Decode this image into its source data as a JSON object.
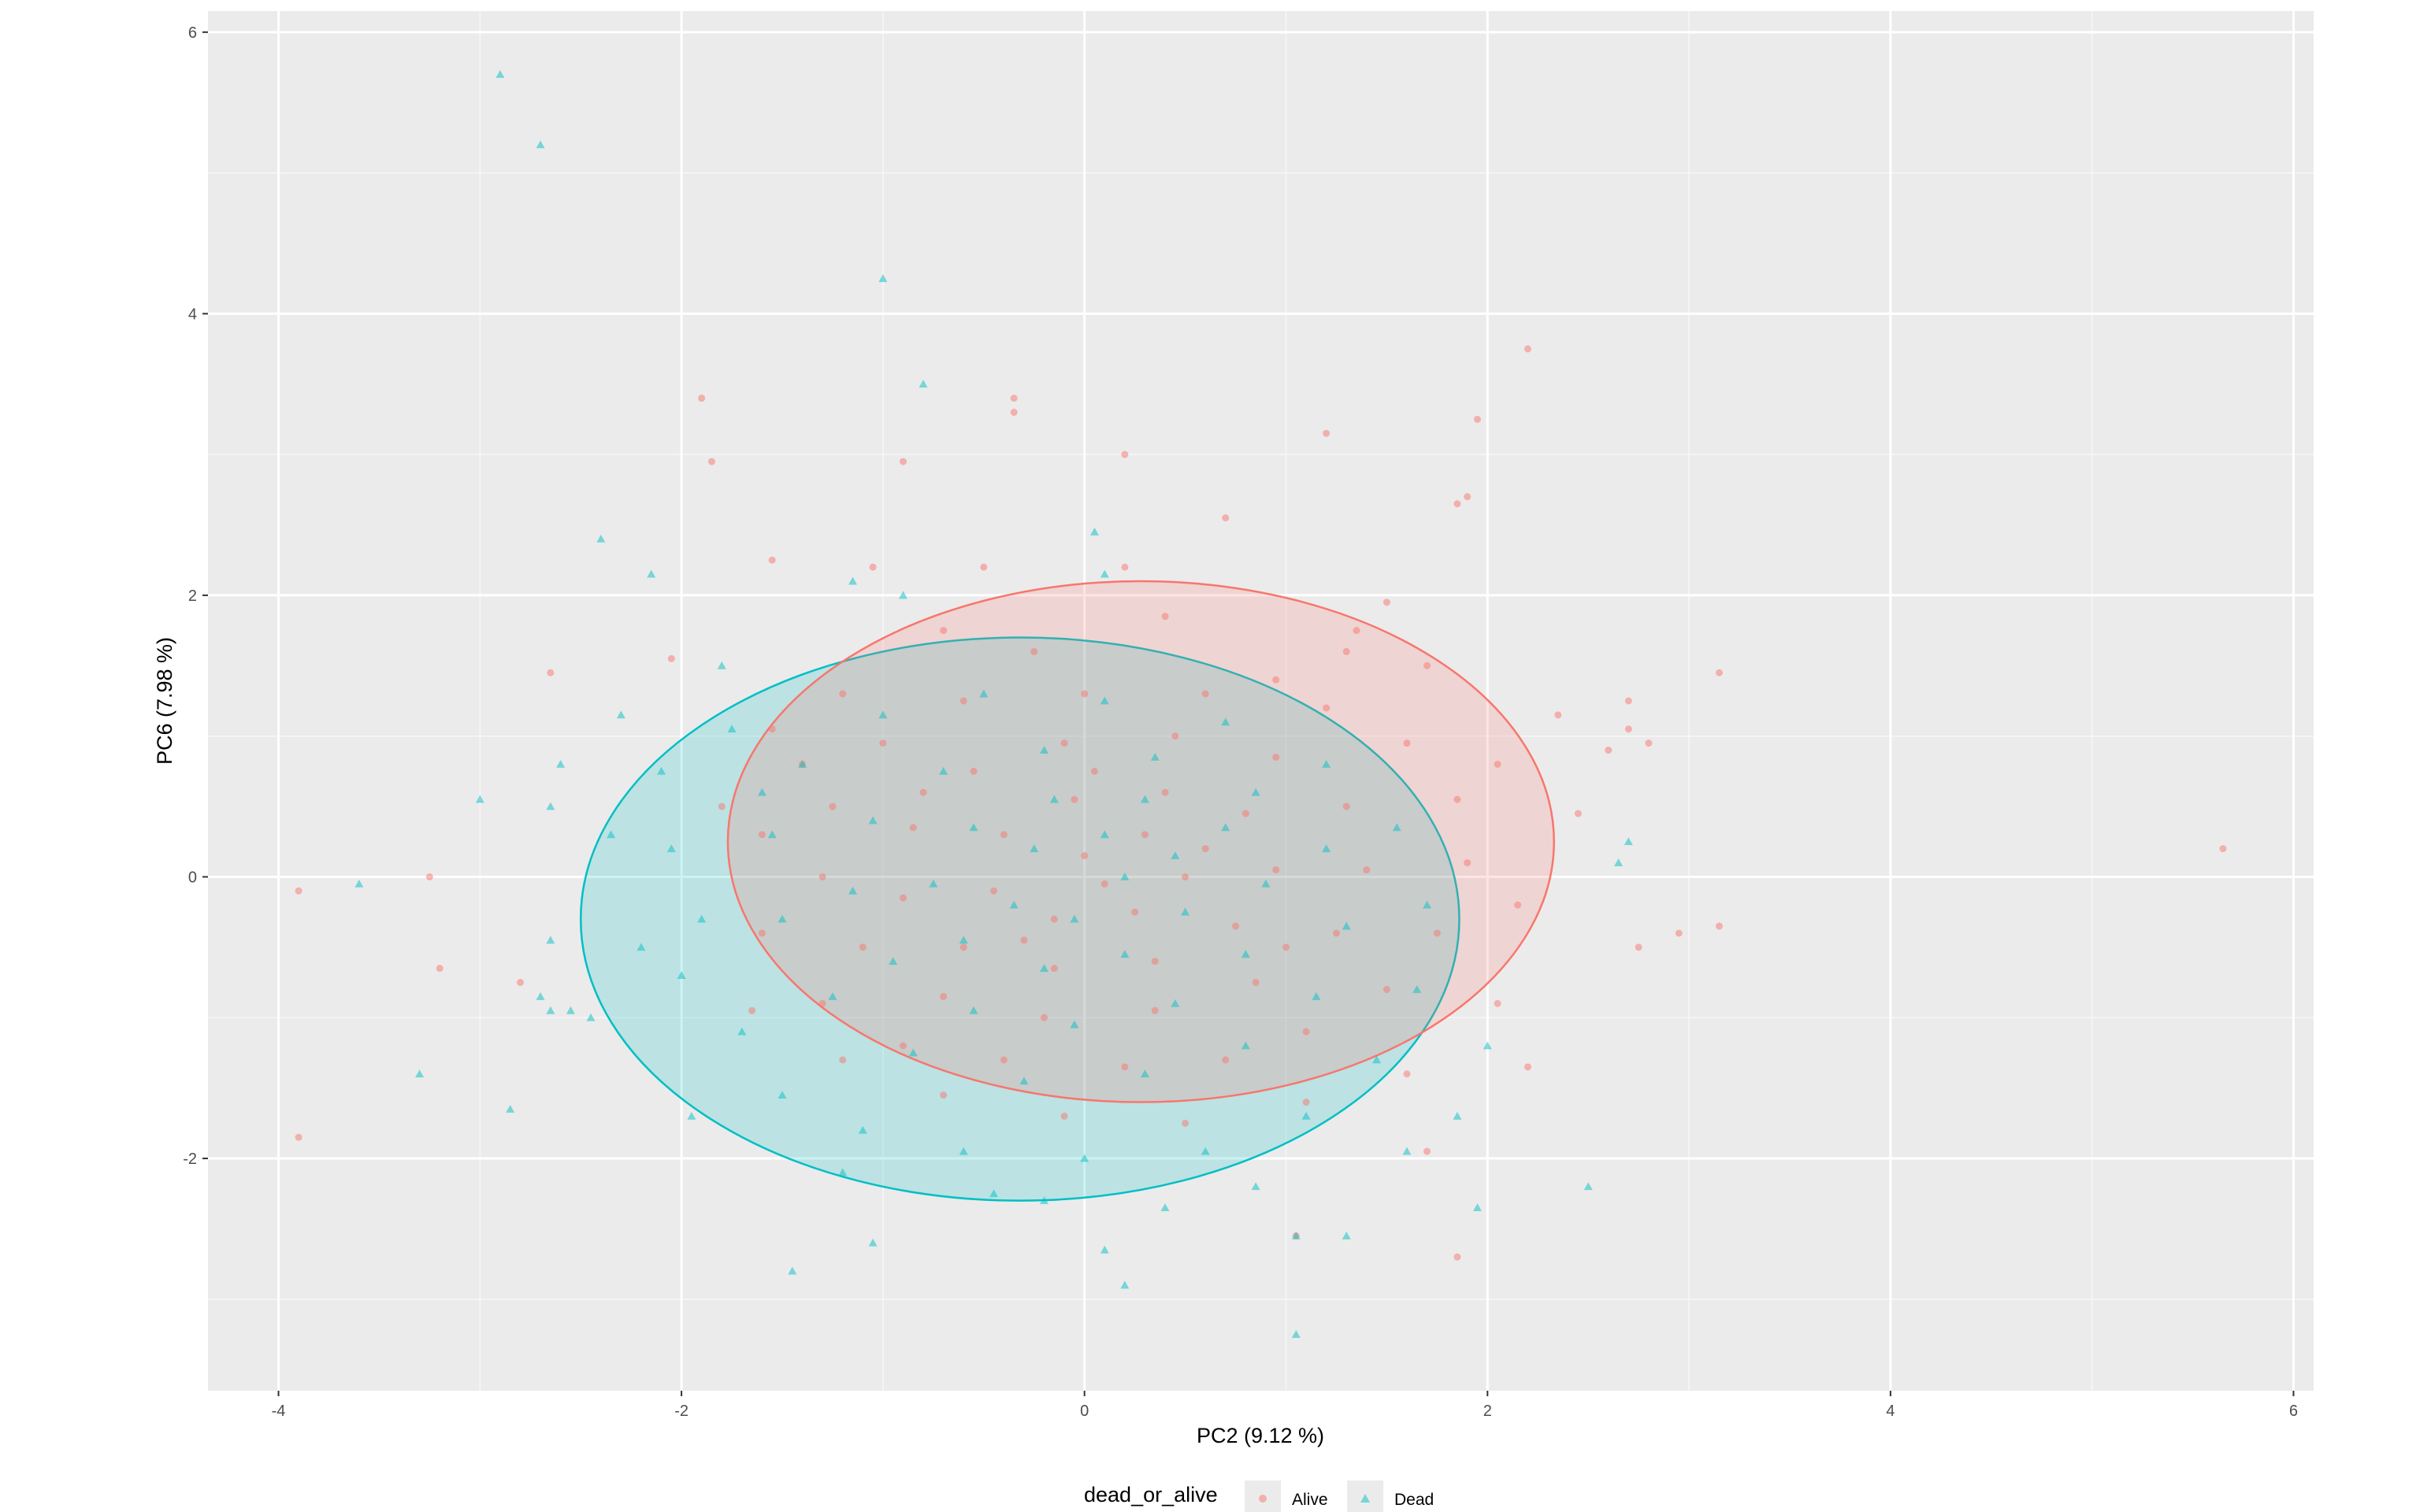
{
  "chart_data": {
    "type": "scatter",
    "xlabel": "PC2 (9.12 %)",
    "ylabel": "PC6 (7.98 %)",
    "xlim": [
      -4.35,
      6.1
    ],
    "ylim": [
      -3.65,
      6.15
    ],
    "x_ticks": [
      -4,
      -2,
      0,
      2,
      4,
      6
    ],
    "y_ticks": [
      -2,
      0,
      2,
      4,
      6
    ],
    "x_tick_labels": [
      "-4",
      "-2",
      "0",
      "2",
      "4",
      "6"
    ],
    "y_tick_labels": [
      "-2",
      "0",
      "2",
      "4",
      "6"
    ],
    "grid": true,
    "legend": {
      "title": "dead_or_alive",
      "position": "bottom",
      "entries": [
        "Alive",
        "Dead"
      ]
    },
    "series": [
      {
        "name": "Alive",
        "color": "#F8766D",
        "marker": "circle",
        "ellipse": {
          "center": [
            0.28,
            0.25
          ],
          "radii": [
            2.05,
            1.85
          ]
        },
        "points": [
          [
            -3.9,
            -0.1
          ],
          [
            -3.9,
            -1.85
          ],
          [
            -3.2,
            -0.65
          ],
          [
            -3.25,
            0.0
          ],
          [
            -2.8,
            -0.75
          ],
          [
            -2.65,
            1.45
          ],
          [
            -2.05,
            1.55
          ],
          [
            -1.9,
            3.4
          ],
          [
            -1.85,
            2.95
          ],
          [
            -1.55,
            2.25
          ],
          [
            -1.05,
            2.2
          ],
          [
            -0.9,
            2.95
          ],
          [
            -0.35,
            3.4
          ],
          [
            -0.35,
            3.3
          ],
          [
            0.2,
            3.0
          ],
          [
            0.7,
            2.55
          ],
          [
            1.2,
            3.15
          ],
          [
            1.95,
            3.25
          ],
          [
            2.2,
            3.75
          ],
          [
            1.85,
            2.65
          ],
          [
            1.9,
            2.7
          ],
          [
            2.35,
            1.15
          ],
          [
            2.7,
            1.25
          ],
          [
            2.8,
            0.95
          ],
          [
            2.7,
            1.05
          ],
          [
            3.15,
            1.45
          ],
          [
            2.6,
            0.9
          ],
          [
            2.45,
            0.45
          ],
          [
            2.75,
            -0.5
          ],
          [
            2.95,
            -0.4
          ],
          [
            3.15,
            -0.35
          ],
          [
            5.65,
            0.2
          ],
          [
            2.2,
            -1.35
          ],
          [
            1.85,
            -2.7
          ],
          [
            1.7,
            -1.95
          ],
          [
            1.05,
            -2.55
          ],
          [
            -0.25,
            1.6
          ],
          [
            0.4,
            1.85
          ],
          [
            0.95,
            1.4
          ],
          [
            1.35,
            1.75
          ],
          [
            1.5,
            1.95
          ],
          [
            -1.2,
            1.3
          ],
          [
            -0.7,
            1.75
          ],
          [
            -1.4,
            0.8
          ],
          [
            -1.6,
            0.3
          ],
          [
            -1.6,
            -0.4
          ],
          [
            -1.3,
            -0.9
          ],
          [
            -0.9,
            -1.2
          ],
          [
            -0.4,
            -1.3
          ],
          [
            0.2,
            -1.35
          ],
          [
            0.7,
            -1.3
          ],
          [
            1.1,
            -1.1
          ],
          [
            1.5,
            -0.8
          ],
          [
            1.75,
            -0.4
          ],
          [
            1.9,
            0.1
          ],
          [
            1.85,
            0.55
          ],
          [
            1.6,
            0.95
          ],
          [
            1.2,
            1.2
          ],
          [
            0.6,
            1.3
          ],
          [
            0.0,
            1.3
          ],
          [
            -0.6,
            1.25
          ],
          [
            -1.0,
            0.95
          ],
          [
            -1.25,
            0.5
          ],
          [
            -1.3,
            0.0
          ],
          [
            -1.1,
            -0.5
          ],
          [
            -0.7,
            -0.85
          ],
          [
            -0.2,
            -1.0
          ],
          [
            0.35,
            -0.95
          ],
          [
            0.85,
            -0.75
          ],
          [
            1.25,
            -0.4
          ],
          [
            1.4,
            0.05
          ],
          [
            1.3,
            0.5
          ],
          [
            0.95,
            0.85
          ],
          [
            0.45,
            1.0
          ],
          [
            -0.1,
            0.95
          ],
          [
            -0.55,
            0.75
          ],
          [
            -0.85,
            0.35
          ],
          [
            -0.9,
            -0.15
          ],
          [
            -0.6,
            -0.5
          ],
          [
            -0.15,
            -0.65
          ],
          [
            0.35,
            -0.6
          ],
          [
            0.75,
            -0.35
          ],
          [
            0.95,
            0.05
          ],
          [
            0.8,
            0.45
          ],
          [
            0.4,
            0.6
          ],
          [
            -0.05,
            0.55
          ],
          [
            -0.4,
            0.3
          ],
          [
            -0.45,
            -0.1
          ],
          [
            -0.15,
            -0.3
          ],
          [
            0.25,
            -0.25
          ],
          [
            0.5,
            0.0
          ],
          [
            0.3,
            0.3
          ],
          [
            0.0,
            0.15
          ],
          [
            0.1,
            -0.05
          ],
          [
            1.3,
            1.6
          ],
          [
            0.2,
            2.2
          ],
          [
            -0.5,
            2.2
          ],
          [
            1.7,
            1.5
          ],
          [
            2.05,
            0.8
          ],
          [
            2.15,
            -0.2
          ],
          [
            2.05,
            -0.9
          ],
          [
            1.6,
            -1.4
          ],
          [
            1.1,
            -1.6
          ],
          [
            0.5,
            -1.75
          ],
          [
            -0.1,
            -1.7
          ],
          [
            -0.7,
            -1.55
          ],
          [
            -1.2,
            -1.3
          ],
          [
            -1.65,
            -0.95
          ],
          [
            -1.8,
            0.5
          ],
          [
            -1.55,
            1.05
          ],
          [
            0.05,
            0.75
          ],
          [
            0.6,
            0.2
          ],
          [
            -0.3,
            -0.45
          ],
          [
            1.0,
            -0.5
          ],
          [
            -0.8,
            0.6
          ]
        ]
      },
      {
        "name": "Dead",
        "color": "#00BFC4",
        "marker": "triangle",
        "ellipse": {
          "center": [
            -0.32,
            -0.3
          ],
          "radii": [
            2.18,
            2.0
          ]
        },
        "points": [
          [
            -2.9,
            5.7
          ],
          [
            -2.7,
            5.2
          ],
          [
            -1.0,
            4.25
          ],
          [
            -0.8,
            3.5
          ],
          [
            -2.4,
            2.4
          ],
          [
            -2.15,
            2.15
          ],
          [
            -1.8,
            1.5
          ],
          [
            -2.3,
            1.15
          ],
          [
            -2.6,
            0.8
          ],
          [
            -2.65,
            0.5
          ],
          [
            -3.0,
            0.55
          ],
          [
            -3.6,
            -0.05
          ],
          [
            -3.3,
            -1.4
          ],
          [
            -2.85,
            -1.65
          ],
          [
            -2.7,
            -0.85
          ],
          [
            -2.65,
            -0.45
          ],
          [
            -2.55,
            -0.95
          ],
          [
            -2.65,
            -0.95
          ],
          [
            -2.45,
            -1.0
          ],
          [
            -1.45,
            -2.8
          ],
          [
            -1.05,
            -2.6
          ],
          [
            -0.2,
            -2.3
          ],
          [
            0.1,
            -2.65
          ],
          [
            0.2,
            -2.9
          ],
          [
            1.05,
            -3.25
          ],
          [
            1.05,
            -2.55
          ],
          [
            1.3,
            -2.55
          ],
          [
            1.6,
            -1.95
          ],
          [
            1.95,
            -2.35
          ],
          [
            2.5,
            -2.2
          ],
          [
            2.0,
            -1.2
          ],
          [
            2.65,
            0.1
          ],
          [
            2.7,
            0.25
          ],
          [
            0.05,
            2.45
          ],
          [
            0.1,
            2.15
          ],
          [
            -0.9,
            2.0
          ],
          [
            -1.15,
            2.1
          ],
          [
            -1.75,
            1.05
          ],
          [
            -1.6,
            0.6
          ],
          [
            -2.05,
            0.2
          ],
          [
            -1.9,
            -0.3
          ],
          [
            -2.0,
            -0.7
          ],
          [
            -1.7,
            -1.1
          ],
          [
            -1.5,
            -1.55
          ],
          [
            -1.1,
            -1.8
          ],
          [
            -0.6,
            -1.95
          ],
          [
            0.0,
            -2.0
          ],
          [
            0.6,
            -1.95
          ],
          [
            1.1,
            -1.7
          ],
          [
            1.45,
            -1.3
          ],
          [
            1.65,
            -0.8
          ],
          [
            1.7,
            -0.2
          ],
          [
            1.55,
            0.35
          ],
          [
            1.2,
            0.8
          ],
          [
            0.7,
            1.1
          ],
          [
            0.1,
            1.25
          ],
          [
            -0.5,
            1.3
          ],
          [
            -1.0,
            1.15
          ],
          [
            -1.4,
            0.8
          ],
          [
            -1.55,
            0.3
          ],
          [
            -1.5,
            -0.3
          ],
          [
            -1.25,
            -0.85
          ],
          [
            -0.85,
            -1.25
          ],
          [
            -0.3,
            -1.45
          ],
          [
            0.3,
            -1.4
          ],
          [
            0.8,
            -1.2
          ],
          [
            1.15,
            -0.85
          ],
          [
            1.3,
            -0.35
          ],
          [
            1.2,
            0.2
          ],
          [
            0.85,
            0.6
          ],
          [
            0.35,
            0.85
          ],
          [
            -0.2,
            0.9
          ],
          [
            -0.7,
            0.75
          ],
          [
            -1.05,
            0.4
          ],
          [
            -1.15,
            -0.1
          ],
          [
            -0.95,
            -0.6
          ],
          [
            -0.55,
            -0.95
          ],
          [
            -0.05,
            -1.05
          ],
          [
            0.45,
            -0.9
          ],
          [
            0.8,
            -0.55
          ],
          [
            0.9,
            -0.05
          ],
          [
            0.7,
            0.35
          ],
          [
            0.3,
            0.55
          ],
          [
            -0.15,
            0.55
          ],
          [
            -0.55,
            0.35
          ],
          [
            -0.75,
            -0.05
          ],
          [
            -0.6,
            -0.45
          ],
          [
            -0.2,
            -0.65
          ],
          [
            0.2,
            -0.55
          ],
          [
            0.5,
            -0.25
          ],
          [
            0.45,
            0.15
          ],
          [
            0.1,
            0.3
          ],
          [
            -0.25,
            0.2
          ],
          [
            -0.35,
            -0.2
          ],
          [
            -0.05,
            -0.3
          ],
          [
            0.2,
            0.0
          ],
          [
            -2.2,
            -0.5
          ],
          [
            -2.35,
            0.3
          ],
          [
            -1.95,
            -1.7
          ],
          [
            -0.45,
            -2.25
          ],
          [
            0.4,
            -2.35
          ],
          [
            0.85,
            -2.2
          ],
          [
            -2.1,
            0.75
          ],
          [
            -1.2,
            -2.1
          ],
          [
            1.85,
            -1.7
          ]
        ]
      }
    ]
  }
}
